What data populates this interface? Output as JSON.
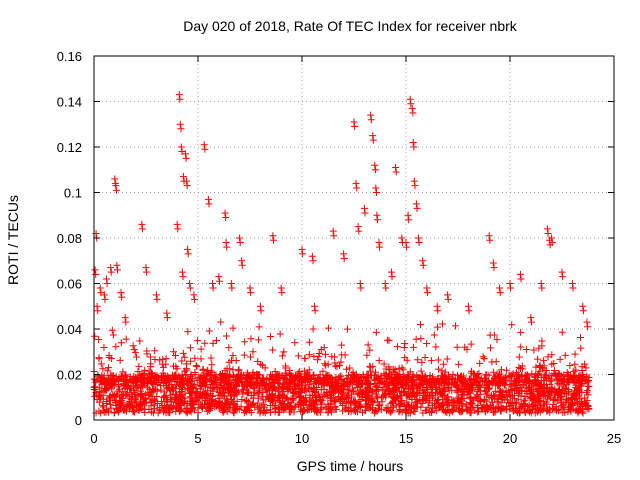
{
  "chart_data": {
    "type": "scatter",
    "title": "Day 020 of 2018, Rate Of TEC Index for receiver nbrk",
    "xlabel": "GPS time / hours",
    "ylabel": "ROTI / TECUs",
    "xlim": [
      0,
      25
    ],
    "ylim": [
      0,
      0.16
    ],
    "xticks": [
      0,
      5,
      10,
      15,
      20,
      25
    ],
    "xtick_labels": [
      "0",
      "5",
      "10",
      "15",
      "20",
      "25"
    ],
    "yticks": [
      0,
      0.02,
      0.04,
      0.06,
      0.08,
      0.1,
      0.12,
      0.14,
      0.16
    ],
    "ytick_labels": [
      "0",
      "0.02",
      "0.04",
      "0.06",
      "0.08",
      "0.1",
      "0.12",
      "0.14",
      "0.16"
    ],
    "grid": true,
    "marker": "plus",
    "series": [
      {
        "name": "ROTI",
        "color": "#ff0000",
        "x": [
          0.05,
          0.1,
          0.15,
          0.3,
          0.5,
          0.6,
          0.8,
          1.0,
          1.05,
          1.1,
          1.3,
          1.5,
          2.3,
          2.5,
          3.0,
          3.5,
          4.0,
          4.1,
          4.15,
          4.2,
          4.25,
          4.3,
          4.4,
          4.45,
          4.5,
          4.6,
          4.8,
          5.3,
          5.5,
          5.7,
          6.0,
          6.3,
          6.35,
          6.6,
          7.0,
          7.1,
          7.5,
          8.0,
          8.6,
          9.0,
          10.0,
          10.5,
          10.6,
          11.5,
          12.0,
          12.5,
          12.6,
          12.7,
          12.8,
          13.0,
          13.3,
          13.4,
          13.5,
          13.55,
          13.6,
          13.7,
          14.0,
          14.3,
          14.5,
          14.8,
          15.0,
          15.1,
          15.2,
          15.3,
          15.35,
          15.4,
          15.5,
          15.6,
          15.8,
          16.0,
          16.5,
          17.0,
          18.0,
          19.0,
          19.2,
          19.5,
          20.0,
          20.5,
          21.0,
          21.5,
          21.8,
          21.9,
          22.0,
          22.5,
          23.0,
          23.5,
          23.7
        ],
        "y": [
          0.066,
          0.082,
          0.05,
          0.058,
          0.055,
          0.062,
          0.067,
          0.106,
          0.103,
          0.068,
          0.056,
          0.045,
          0.086,
          0.067,
          0.055,
          0.047,
          0.086,
          0.143,
          0.13,
          0.12,
          0.065,
          0.107,
          0.117,
          0.105,
          0.075,
          0.06,
          0.055,
          0.121,
          0.097,
          0.06,
          0.063,
          0.091,
          0.078,
          0.06,
          0.08,
          0.07,
          0.058,
          0.05,
          0.081,
          0.058,
          0.075,
          0.072,
          0.05,
          0.083,
          0.073,
          0.131,
          0.104,
          0.085,
          0.06,
          0.093,
          0.134,
          0.125,
          0.112,
          0.102,
          0.09,
          0.078,
          0.06,
          0.065,
          0.111,
          0.08,
          0.078,
          0.09,
          0.141,
          0.137,
          0.122,
          0.105,
          0.095,
          0.08,
          0.07,
          0.058,
          0.05,
          0.055,
          0.05,
          0.081,
          0.069,
          0.058,
          0.06,
          0.064,
          0.045,
          0.06,
          0.084,
          0.079,
          0.08,
          0.065,
          0.06,
          0.05,
          0.043
        ]
      }
    ],
    "background_band": {
      "x_range": [
        0,
        23.8
      ],
      "y_low_range": [
        0.003,
        0.015
      ],
      "y_high_range": [
        0.02,
        0.045
      ],
      "note": "dense cloud of ROTI points covering the full observation span"
    }
  }
}
